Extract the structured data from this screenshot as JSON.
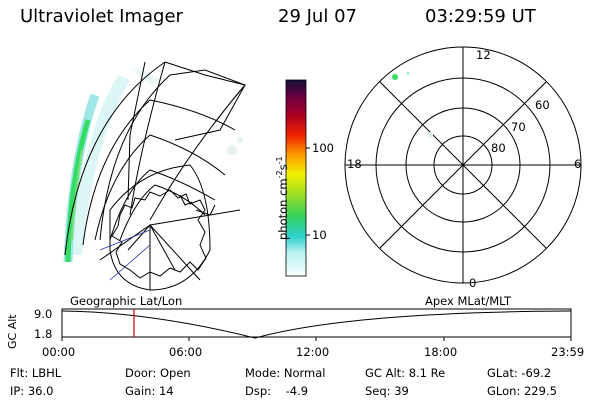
{
  "header": {
    "title": "Ultraviolet Imager",
    "date": "29 Jul 07",
    "time": "03:29:59 UT"
  },
  "projection_labels": {
    "left": "Geographic Lat/Lon",
    "right": "Apex MLat/MLT"
  },
  "colorbar": {
    "label_main": "photon cm",
    "label_sup1": "-2",
    "label_mid": "s",
    "label_sup2": "-1",
    "ticks": [
      "100",
      "10"
    ]
  },
  "polar": {
    "mlt_labels": {
      "top": "12",
      "bottom": "0",
      "left": "18",
      "right": "6"
    },
    "lat_labels": [
      "60",
      "70",
      "80"
    ]
  },
  "altitude_plot": {
    "ylabel": "GC Alt",
    "y_ticks": [
      "9.0",
      "1.8"
    ],
    "x_ticks": [
      "00:00",
      "06:00",
      "12:00",
      "18:00",
      "23:59"
    ]
  },
  "footer": {
    "row1": {
      "flt": "Flt: LBHL",
      "door": "Door: Open",
      "mode": "Mode: Normal",
      "gcalt": "GC Alt: 8.1 Re",
      "glat": "GLat: -69.2"
    },
    "row2": {
      "ip": "IP: 36.0",
      "gain": "Gain: 14",
      "dsp": "Dsp:    -4.9",
      "seq": "Seq: 39",
      "glon": "GLon: 229.5"
    }
  },
  "colors": {
    "marker": "#cc0000",
    "aurora_bright": "#33dd66",
    "aurora_dim": "#9fe6e6"
  }
}
